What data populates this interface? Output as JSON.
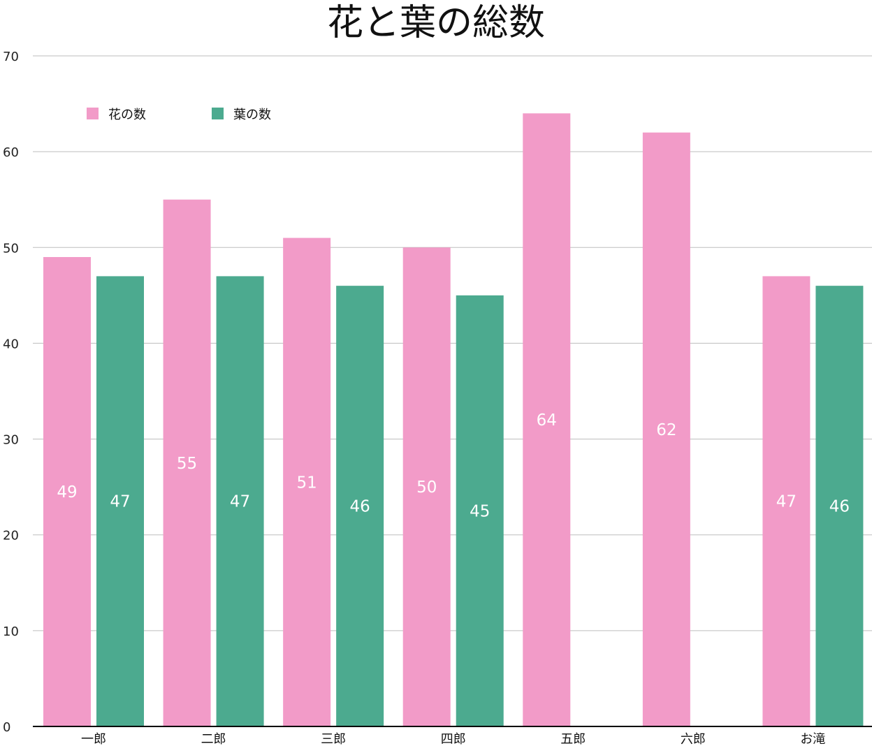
{
  "chart_data": {
    "type": "bar",
    "title": "花と葉の総数",
    "categories": [
      "一郎",
      "二郎",
      "三郎",
      "四郎",
      "五郎",
      "六郎",
      "お滝"
    ],
    "series": [
      {
        "name": "花の数",
        "color": "#f29bc8",
        "values": [
          49,
          55,
          51,
          50,
          64,
          62,
          47
        ]
      },
      {
        "name": "葉の数",
        "color": "#4caa8f",
        "values": [
          47,
          47,
          46,
          45,
          null,
          null,
          46
        ]
      }
    ],
    "yticks": [
      "0",
      "10",
      "20",
      "30",
      "40",
      "50",
      "60",
      "70"
    ],
    "ylim": [
      0,
      70
    ],
    "grid": true,
    "legend_position": "top-left"
  }
}
